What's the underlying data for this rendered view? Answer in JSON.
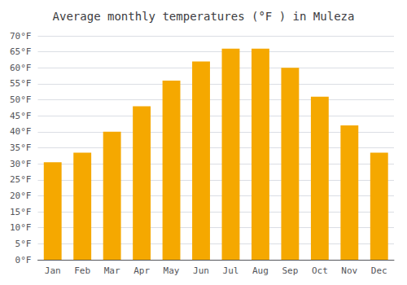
{
  "chart_data": {
    "type": "bar",
    "title": "Average monthly temperatures (°F ) in Muleza",
    "categories": [
      "Jan",
      "Feb",
      "Mar",
      "Apr",
      "May",
      "Jun",
      "Jul",
      "Aug",
      "Sep",
      "Oct",
      "Nov",
      "Dec"
    ],
    "values": [
      30.5,
      33.5,
      40.0,
      48.0,
      56.0,
      62.0,
      66.0,
      66.0,
      60.0,
      51.0,
      42.0,
      33.5
    ],
    "color": "#F5A800",
    "ylim": [
      0,
      70
    ],
    "yticks": [
      {
        "value": 0,
        "label": "0°F"
      },
      {
        "value": 5,
        "label": "5°F"
      },
      {
        "value": 10,
        "label": "10°F"
      },
      {
        "value": 15,
        "label": "15°F"
      },
      {
        "value": 20,
        "label": "20°F"
      },
      {
        "value": 25,
        "label": "25°F"
      },
      {
        "value": 30,
        "label": "30°F"
      },
      {
        "value": 35,
        "label": "35°F"
      },
      {
        "value": 40,
        "label": "40°F"
      },
      {
        "value": 45,
        "label": "45°F"
      },
      {
        "value": 50,
        "label": "50°F"
      },
      {
        "value": 55,
        "label": "55°F"
      },
      {
        "value": 60,
        "label": "60°F"
      },
      {
        "value": 65,
        "label": "65°F"
      },
      {
        "value": 70,
        "label": "70°F"
      }
    ],
    "grid": true
  }
}
